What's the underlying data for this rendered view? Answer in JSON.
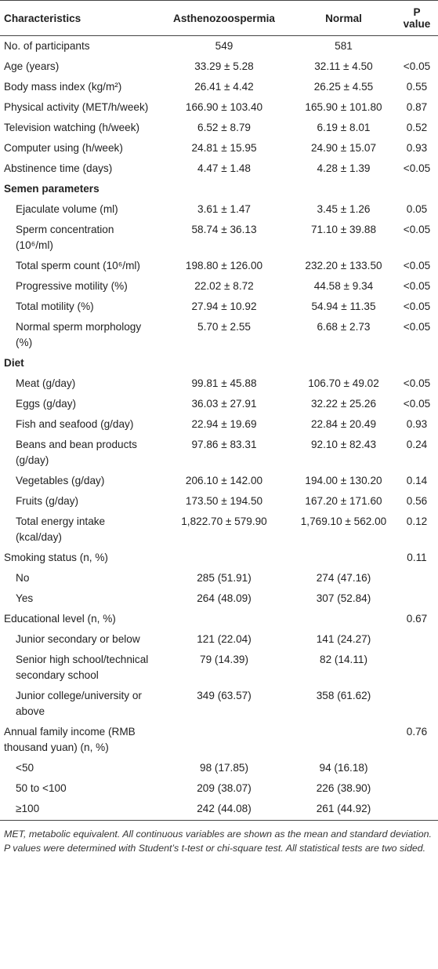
{
  "table": {
    "header": [
      "Characteristics",
      "Asthenozoospermia",
      "Normal",
      "P value"
    ],
    "rows": [
      [
        "No. of participants",
        "549",
        "581",
        null
      ],
      [
        "Age (years)",
        "33.29 ± 5.28",
        "32.11 ± 4.50",
        "<0.05"
      ],
      [
        "Body mass index (kg/m²)",
        "26.41 ± 4.42",
        "26.25 ± 4.55",
        "0.55"
      ],
      [
        "Physical activity (MET/h/week)",
        "166.90 ± 103.40",
        "165.90 ± 101.80",
        "0.87"
      ],
      [
        "Television watching (h/week)",
        "6.52 ± 8.79",
        "6.19 ± 8.01",
        "0.52"
      ],
      [
        "Computer using (h/week)",
        "24.81 ± 15.95",
        "24.90 ± 15.07",
        "0.93"
      ],
      [
        "Abstinence time (days)",
        "4.47 ± 1.48",
        "4.28 ± 1.39",
        "<0.05"
      ],
      [
        "Semen parameters"
      ],
      [
        "Ejaculate volume (ml)",
        "3.61 ± 1.47",
        "3.45 ± 1.26",
        "0.05"
      ],
      [
        "Sperm concentration (10⁶/ml)",
        "58.74 ± 36.13",
        "71.10 ± 39.88",
        "<0.05"
      ],
      [
        "Total sperm count (10⁶/ml)",
        "198.80 ± 126.00",
        "232.20 ± 133.50",
        "<0.05"
      ],
      [
        "Progressive motility (%)",
        "22.02 ± 8.72",
        "44.58 ± 9.34",
        "<0.05"
      ],
      [
        "Total motility (%)",
        "27.94 ± 10.92",
        "54.94 ± 11.35",
        "<0.05"
      ],
      [
        "Normal sperm morphology (%)",
        "5.70 ± 2.55",
        "6.68 ± 2.73",
        "<0.05"
      ],
      [
        "Diet"
      ],
      [
        "Meat (g/day)",
        "99.81 ± 45.88",
        "106.70 ± 49.02",
        "<0.05"
      ],
      [
        "Eggs (g/day)",
        "36.03 ± 27.91",
        "32.22 ± 25.26",
        "<0.05"
      ],
      [
        "Fish and seafood (g/day)",
        "22.94 ± 19.69",
        "22.84 ± 20.49",
        "0.93"
      ],
      [
        "Beans and bean products (g/day)",
        "97.86 ± 83.31",
        "92.10 ± 82.43",
        "0.24"
      ],
      [
        "Vegetables (g/day)",
        "206.10 ± 142.00",
        "194.00 ± 130.20",
        "0.14"
      ],
      [
        "Fruits (g/day)",
        "173.50 ± 194.50",
        "167.20 ± 171.60",
        "0.56"
      ],
      [
        "Total energy intake (kcal/day)",
        "1,822.70 ± 579.90",
        "1,769.10 ± 562.00",
        "0.12"
      ],
      [
        "Smoking status (n, %)",
        null,
        null,
        "0.11"
      ],
      [
        "No",
        "285 (51.91)",
        "274 (47.16)",
        null
      ],
      [
        "Yes",
        "264 (48.09)",
        "307 (52.84)",
        null
      ],
      [
        "Educational level (n, %)",
        null,
        null,
        "0.67"
      ],
      [
        "Junior secondary or below",
        "121 (22.04)",
        "141 (24.27)",
        null
      ],
      [
        "Senior high school/technical secondary school",
        "79 (14.39)",
        "82 (14.11)",
        null
      ],
      [
        "Junior college/university or above",
        "349 (63.57)",
        "358 (61.62)",
        null
      ],
      [
        "Annual family income (RMB thousand yuan) (n, %)",
        null,
        null,
        "0.76"
      ],
      [
        "<50",
        "98 (17.85)",
        "94 (16.18)",
        null
      ],
      [
        "50 to <100",
        "209 (38.07)",
        "226 (38.90)",
        null
      ],
      [
        "≥100",
        "242 (44.08)",
        "261 (44.92)",
        null
      ]
    ],
    "footnote": "MET, metabolic equivalent. All continuous variables are shown as the mean and standard deviation. P values were determined with Student’s t-test or chi-square test. All statistical tests are two sided."
  }
}
